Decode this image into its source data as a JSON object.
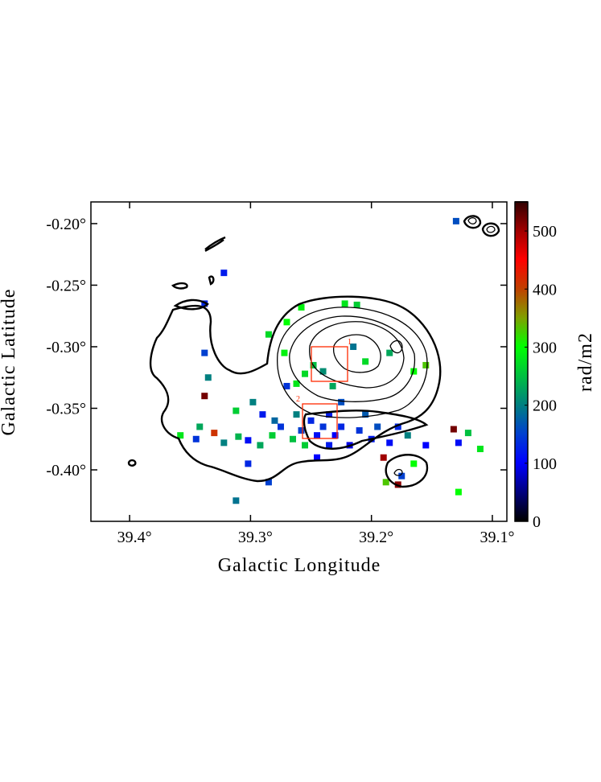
{
  "chart_data": {
    "type": "pixelmap",
    "xlabel": "Galactic Longitude",
    "ylabel": "Galactic Latitude",
    "colorbar_label": "rad/m2",
    "xlim": [
      39.432,
      39.088
    ],
    "ylim": [
      -0.4418,
      -0.1824
    ],
    "zlim": [
      0,
      550
    ],
    "xticks": [
      {
        "value": 39.4,
        "label": "39.4°"
      },
      {
        "value": 39.3,
        "label": "39.3°"
      },
      {
        "value": 39.2,
        "label": "39.2°"
      },
      {
        "value": 39.1,
        "label": "39.1°"
      }
    ],
    "yticks": [
      {
        "value": -0.2,
        "label": "-0.20°"
      },
      {
        "value": -0.25,
        "label": "-0.25°"
      },
      {
        "value": -0.3,
        "label": "-0.30°"
      },
      {
        "value": -0.35,
        "label": "-0.35°"
      },
      {
        "value": -0.4,
        "label": "-0.40°"
      }
    ],
    "zticks": [
      0,
      100,
      200,
      300,
      400,
      500
    ],
    "colorscale": [
      "#000000",
      "#00007f",
      "#0000ff",
      "#0040d0",
      "#008080",
      "#00c040",
      "#00ff00",
      "#80a000",
      "#c04000",
      "#ff0000",
      "#a00000",
      "#300000"
    ],
    "regions": [
      {
        "label": "1"
      },
      {
        "label": "2"
      }
    ],
    "x": [
      39.322,
      39.338,
      39.338,
      39.335,
      39.338,
      39.342,
      39.358,
      39.345,
      39.33,
      39.322,
      39.31,
      39.302,
      39.312,
      39.298,
      39.29,
      39.28,
      39.282,
      39.292,
      39.302,
      39.312,
      39.285,
      39.27,
      39.262,
      39.258,
      39.25,
      39.245,
      39.24,
      39.235,
      39.23,
      39.225,
      39.218,
      39.21,
      39.2,
      39.195,
      39.185,
      39.178,
      39.17,
      39.255,
      39.265,
      39.245,
      39.255,
      39.248,
      39.24,
      39.232,
      39.262,
      39.272,
      39.285,
      39.27,
      39.258,
      39.222,
      39.212,
      39.215,
      39.205,
      39.185,
      39.165,
      39.155,
      39.19,
      39.188,
      39.178,
      39.175,
      39.165,
      39.132,
      39.128,
      39.11,
      39.12,
      39.128,
      39.155,
      39.13,
      39.225,
      39.235,
      39.275,
      39.205
    ],
    "y": [
      -0.24,
      -0.265,
      -0.305,
      -0.325,
      -0.34,
      -0.365,
      -0.372,
      -0.375,
      -0.37,
      -0.378,
      -0.373,
      -0.376,
      -0.352,
      -0.345,
      -0.355,
      -0.36,
      -0.372,
      -0.38,
      -0.395,
      -0.425,
      -0.41,
      -0.332,
      -0.355,
      -0.368,
      -0.36,
      -0.372,
      -0.365,
      -0.38,
      -0.372,
      -0.365,
      -0.38,
      -0.368,
      -0.375,
      -0.365,
      -0.378,
      -0.365,
      -0.372,
      -0.38,
      -0.375,
      -0.39,
      -0.322,
      -0.315,
      -0.32,
      -0.332,
      -0.33,
      -0.305,
      -0.29,
      -0.28,
      -0.268,
      -0.265,
      -0.266,
      -0.3,
      -0.312,
      -0.305,
      -0.32,
      -0.315,
      -0.39,
      -0.41,
      -0.412,
      -0.405,
      -0.395,
      -0.367,
      -0.378,
      -0.383,
      -0.37,
      -0.418,
      -0.38,
      -0.198,
      -0.345,
      -0.355,
      -0.365,
      -0.355
    ],
    "values": [
      120,
      130,
      150,
      200,
      520,
      230,
      280,
      140,
      410,
      200,
      240,
      110,
      260,
      200,
      120,
      180,
      260,
      230,
      130,
      190,
      150,
      140,
      200,
      150,
      130,
      110,
      140,
      120,
      100,
      130,
      90,
      140,
      120,
      160,
      110,
      130,
      200,
      260,
      250,
      100,
      270,
      250,
      210,
      230,
      280,
      290,
      270,
      300,
      290,
      280,
      260,
      190,
      270,
      230,
      300,
      330,
      500,
      330,
      510,
      150,
      300,
      520,
      110,
      280,
      250,
      300,
      100,
      160,
      160,
      120,
      140,
      170
    ]
  }
}
